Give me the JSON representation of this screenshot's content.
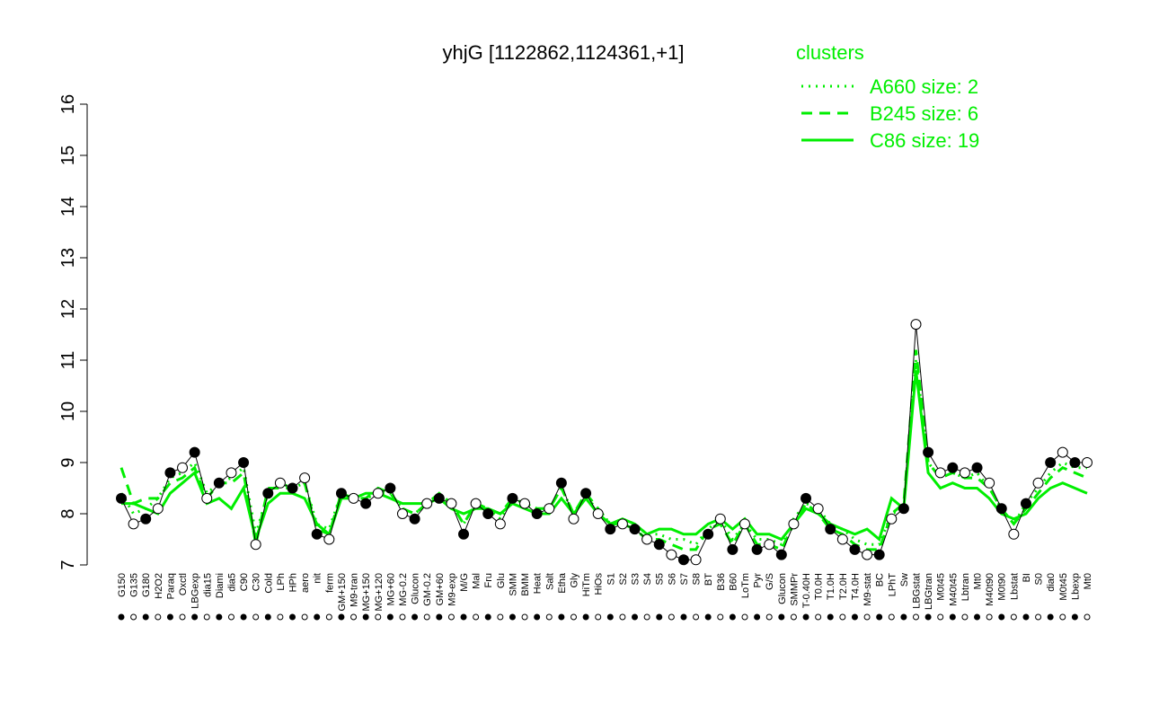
{
  "chart_data": {
    "type": "line",
    "title": "yhjG [1122862,1124361,+1]",
    "categories": [
      "G150",
      "G135",
      "G180",
      "H2O2",
      "Paraq",
      "Oxctl",
      "LBGexp",
      "dia15",
      "Diami",
      "dia5",
      "C90",
      "C30",
      "Cold",
      "LPh",
      "HPh",
      "aero",
      "nit",
      "ferm",
      "GM+150",
      "M9-tran",
      "MG+150",
      "MG+120",
      "MG+60",
      "MG-0.2",
      "Glucon",
      "GM-0.2",
      "GM+60",
      "M9-exp",
      "M/G",
      "Mal",
      "Fru",
      "Glu",
      "SMM",
      "BMM",
      "Heat",
      "Salt",
      "Etha",
      "Gly",
      "HiTm",
      "HiOs",
      "S1",
      "S2",
      "S3",
      "S4",
      "S5",
      "S6",
      "S7",
      "S8",
      "BT",
      "B36",
      "B60",
      "LoTm",
      "Pyr",
      "G/S",
      "Glucon",
      "SMMPr",
      "T-0.40H",
      "T0.0H",
      "T1.0H",
      "T2.0H",
      "T4.0H",
      "M9-stat",
      "BC",
      "LPhT",
      "Sw",
      "LBGstat",
      "LBGtran",
      "M0t45",
      "M40t45",
      "Lbtran",
      "Mt0",
      "M40t90",
      "M0t90",
      "Lbstat",
      "BI",
      "S0",
      "dia0",
      "M0t45",
      "Lbexp",
      "Mt0"
    ],
    "values": [
      8.3,
      7.8,
      7.9,
      8.1,
      8.8,
      8.9,
      9.2,
      8.3,
      8.6,
      8.8,
      9.0,
      7.4,
      8.4,
      8.6,
      8.5,
      8.7,
      7.6,
      7.5,
      8.4,
      8.3,
      8.2,
      8.4,
      8.5,
      8.0,
      7.9,
      8.2,
      8.3,
      8.2,
      7.6,
      8.2,
      8.0,
      7.8,
      8.3,
      8.2,
      8.0,
      8.1,
      8.6,
      7.9,
      8.4,
      8.0,
      7.7,
      7.8,
      7.7,
      7.5,
      7.4,
      7.2,
      7.1,
      7.1,
      7.6,
      7.9,
      7.3,
      7.8,
      7.3,
      7.4,
      7.2,
      7.8,
      8.3,
      8.1,
      7.7,
      7.5,
      7.3,
      7.2,
      7.2,
      7.9,
      8.1,
      11.7,
      9.2,
      8.8,
      8.9,
      8.8,
      8.9,
      8.6,
      8.1,
      7.6,
      8.2,
      8.6,
      9.0,
      9.2,
      9.0,
      9.0
    ],
    "color": "#000000",
    "series": [
      {
        "name": "A660 size: 2",
        "color": "#00ee00",
        "dash": "dotted",
        "values": [
          8.4,
          8.0,
          8.1,
          8.3,
          8.7,
          8.8,
          9.0,
          8.4,
          8.6,
          8.7,
          8.9,
          7.6,
          8.4,
          8.6,
          8.5,
          8.6,
          7.8,
          7.7,
          8.4,
          8.3,
          8.3,
          8.4,
          8.4,
          8.1,
          8.0,
          8.2,
          8.3,
          8.2,
          7.8,
          8.2,
          8.1,
          7.9,
          8.3,
          8.2,
          8.1,
          8.1,
          8.5,
          8.0,
          8.3,
          8.1,
          7.8,
          7.9,
          7.8,
          7.6,
          7.6,
          7.5,
          7.5,
          7.4,
          7.7,
          7.9,
          7.5,
          7.8,
          7.5,
          7.5,
          7.4,
          7.9,
          8.2,
          8.1,
          7.8,
          7.7,
          7.5,
          7.4,
          7.4,
          8.0,
          8.1,
          11.0,
          9.0,
          8.7,
          8.8,
          8.7,
          8.8,
          8.5,
          8.1,
          7.8,
          8.2,
          8.5,
          8.8,
          9.0,
          8.9,
          8.9
        ]
      },
      {
        "name": "B245 size: 6",
        "color": "#00ee00",
        "dash": "dashed",
        "values": [
          8.9,
          8.2,
          8.3,
          8.3,
          8.6,
          8.7,
          8.9,
          8.3,
          8.6,
          8.6,
          8.8,
          7.4,
          8.5,
          8.5,
          8.5,
          8.6,
          7.7,
          7.6,
          8.4,
          8.3,
          8.3,
          8.5,
          8.4,
          8.1,
          8.0,
          8.2,
          8.4,
          8.2,
          7.8,
          8.2,
          8.1,
          8.0,
          8.3,
          8.2,
          8.1,
          8.1,
          8.5,
          8.0,
          8.4,
          8.1,
          7.8,
          7.8,
          7.7,
          7.5,
          7.5,
          7.4,
          7.3,
          7.3,
          7.7,
          7.8,
          7.4,
          7.8,
          7.4,
          7.4,
          7.3,
          7.8,
          8.2,
          8.0,
          7.7,
          7.6,
          7.4,
          7.3,
          7.3,
          8.0,
          8.2,
          11.2,
          9.0,
          8.7,
          8.8,
          8.7,
          8.7,
          8.5,
          8.1,
          7.8,
          8.1,
          8.4,
          8.7,
          8.9,
          8.8,
          8.7
        ]
      },
      {
        "name": "C86 size: 19",
        "color": "#00ee00",
        "dash": "solid",
        "values": [
          8.2,
          8.2,
          8.1,
          8.0,
          8.4,
          8.6,
          8.8,
          8.2,
          8.3,
          8.1,
          8.5,
          7.5,
          8.2,
          8.4,
          8.4,
          8.3,
          7.8,
          7.6,
          8.3,
          8.3,
          8.4,
          8.4,
          8.3,
          8.2,
          8.2,
          8.2,
          8.3,
          8.1,
          8.0,
          8.1,
          8.1,
          8.0,
          8.2,
          8.1,
          8.0,
          8.0,
          8.3,
          8.0,
          8.3,
          8.0,
          7.8,
          7.9,
          7.8,
          7.6,
          7.7,
          7.7,
          7.6,
          7.6,
          7.8,
          7.9,
          7.7,
          7.9,
          7.6,
          7.6,
          7.5,
          7.8,
          8.1,
          8.0,
          7.8,
          7.7,
          7.6,
          7.7,
          7.5,
          8.3,
          8.1,
          10.8,
          8.8,
          8.5,
          8.6,
          8.5,
          8.5,
          8.3,
          8.0,
          7.9,
          8.0,
          8.3,
          8.5,
          8.6,
          8.5,
          8.4
        ]
      }
    ],
    "ylim": [
      7,
      16
    ],
    "yticks": [
      7,
      8,
      9,
      10,
      11,
      12,
      13,
      14,
      15,
      16
    ],
    "legend_title": "clusters",
    "legend_position": "top-right"
  }
}
